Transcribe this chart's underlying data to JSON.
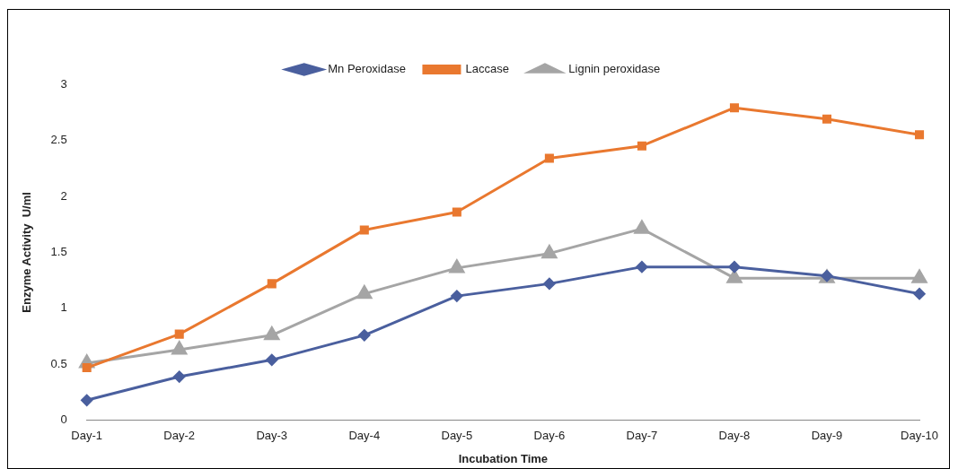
{
  "chart_data": {
    "type": "line",
    "xlabel": "Incubation Time",
    "ylabel": "Enzyme Activity  U/ml",
    "categories": [
      "Day-1",
      "Day-2",
      "Day-3",
      "Day-4",
      "Day-5",
      "Day-6",
      "Day-7",
      "Day-8",
      "Day-9",
      "Day-10"
    ],
    "series": [
      {
        "name": "Mn Peroxidase",
        "color": "#4a5f9e",
        "marker": "diamond",
        "values": [
          0.18,
          0.39,
          0.54,
          0.76,
          1.11,
          1.22,
          1.37,
          1.37,
          1.29,
          1.13
        ]
      },
      {
        "name": "Laccase",
        "color": "#e9782f",
        "marker": "square",
        "values": [
          0.47,
          0.77,
          1.22,
          1.7,
          1.86,
          2.34,
          2.45,
          2.79,
          2.69,
          2.55
        ]
      },
      {
        "name": "Lignin peroxidase",
        "color": "#a5a5a5",
        "marker": "triangle",
        "values": [
          0.51,
          0.63,
          0.76,
          1.13,
          1.36,
          1.49,
          1.71,
          1.27,
          1.27,
          1.27
        ]
      }
    ],
    "ylim": [
      0,
      3
    ],
    "yticks": [
      0,
      0.5,
      1,
      1.5,
      2,
      2.5,
      3
    ],
    "grid": false,
    "legend": "top",
    "line_style": "solid"
  }
}
